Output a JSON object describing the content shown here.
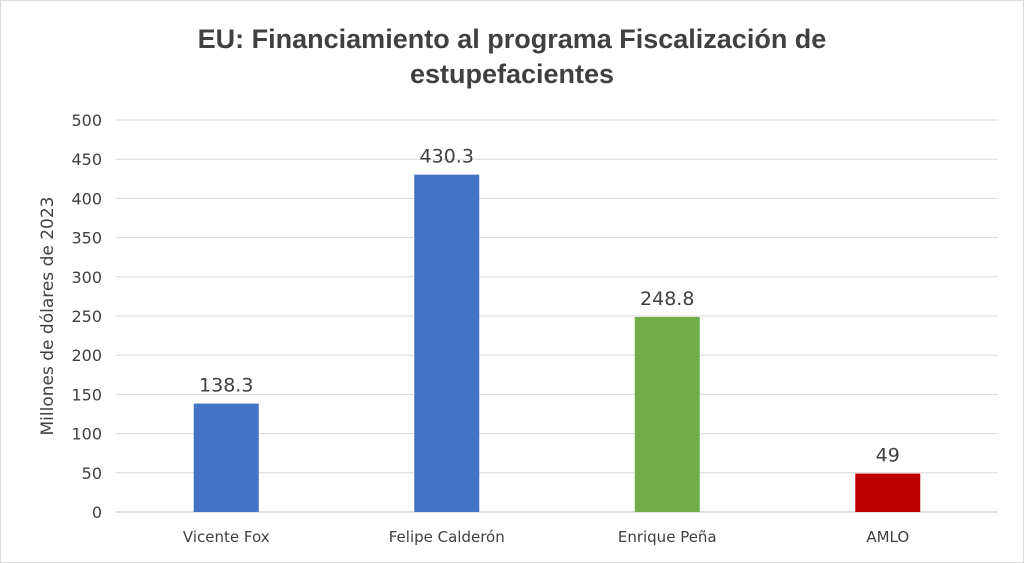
{
  "chart_data": {
    "type": "bar",
    "title_lines": [
      "EU: Financiamiento al programa Fiscalización de",
      "estupefacientes"
    ],
    "xlabel": "",
    "ylabel": "Millones de dólares de 2023",
    "ylim": [
      0,
      500
    ],
    "yticks": [
      0,
      50,
      100,
      150,
      200,
      250,
      300,
      350,
      400,
      450,
      500
    ],
    "grid": true,
    "legend": "none",
    "categories": [
      "Vicente Fox",
      "Felipe Calderón",
      "Enrique Peña",
      "AMLO"
    ],
    "values": [
      138.3,
      430.3,
      248.8,
      49
    ],
    "data_labels": [
      "138.3",
      "430.3",
      "248.8",
      "49"
    ],
    "bar_colors": [
      "#4472c4",
      "#4472c4",
      "#70ad47",
      "#c00000"
    ]
  }
}
